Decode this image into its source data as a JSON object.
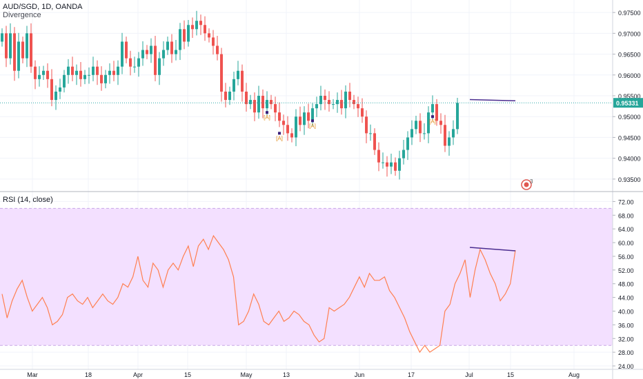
{
  "header": {
    "symbol_line": "AUD/SGD, 1D, OANDA",
    "indicator_name": "Divergence",
    "rsi_label": "RSI (14, close)"
  },
  "last_price_label": "0.95331",
  "badge_count": "3",
  "colors": {
    "up": "#26a69a",
    "down": "#ef5350",
    "rsi_line": "#ff7f50",
    "rsi_band": "#f3e0ff",
    "divergence_line": "#4a2c8f",
    "price_line": "#2aa8a8",
    "pivot_label": "#e08c1a"
  },
  "chart_data": [
    {
      "type": "candlestick",
      "y_axis_ticks": [
        "0.97500",
        "0.97000",
        "0.96500",
        "0.96000",
        "0.95500",
        "0.95000",
        "0.94500",
        "0.94000",
        "0.93500"
      ],
      "ylim": [
        0.932,
        0.978
      ],
      "x_tick_labels": [
        "Mar",
        "18",
        "Apr",
        "15",
        "May",
        "13",
        "Jun",
        "17",
        "Jul",
        "15",
        "Aug"
      ],
      "last_price": 0.95331,
      "closes": [
        0.97,
        0.964,
        0.97,
        0.961,
        0.968,
        0.964,
        0.97,
        0.962,
        0.959,
        0.96,
        0.961,
        0.959,
        0.954,
        0.956,
        0.957,
        0.96,
        0.962,
        0.96,
        0.961,
        0.959,
        0.96,
        0.96,
        0.962,
        0.96,
        0.958,
        0.96,
        0.961,
        0.96,
        0.962,
        0.968,
        0.964,
        0.962,
        0.962,
        0.964,
        0.966,
        0.965,
        0.967,
        0.96,
        0.964,
        0.966,
        0.968,
        0.965,
        0.966,
        0.971,
        0.968,
        0.972,
        0.971,
        0.973,
        0.972,
        0.97,
        0.969,
        0.967,
        0.965,
        0.956,
        0.954,
        0.956,
        0.959,
        0.961,
        0.956,
        0.953,
        0.954,
        0.951,
        0.955,
        0.952,
        0.954,
        0.953,
        0.951,
        0.949,
        0.948,
        0.946,
        0.945,
        0.95,
        0.948,
        0.951,
        0.949,
        0.952,
        0.953,
        0.955,
        0.954,
        0.953,
        0.953,
        0.954,
        0.952,
        0.956,
        0.954,
        0.953,
        0.952,
        0.95,
        0.946,
        0.946,
        0.942,
        0.939,
        0.939,
        0.938,
        0.939,
        0.937,
        0.94,
        0.942,
        0.945,
        0.947,
        0.949,
        0.946,
        0.946,
        0.951,
        0.953,
        0.949,
        0.948,
        0.943,
        0.945,
        0.947,
        0.9533
      ],
      "pivot_labels": [
        {
          "text": "[A]",
          "index": 64
        },
        {
          "text": "[A]",
          "index": 67
        },
        {
          "text": "[A]",
          "index": 75
        },
        {
          "text": "[A]",
          "index": 104
        }
      ],
      "divergence_line": [
        {
          "index": 113,
          "value": 0.9541
        },
        {
          "index": 124,
          "value": 0.9538
        }
      ]
    },
    {
      "type": "line",
      "series": [
        {
          "name": "RSI (14, close)",
          "values": [
            45.0,
            38.0,
            43.0,
            46.5,
            49.0,
            44.0,
            40.0,
            42.0,
            44.0,
            41.0,
            36.0,
            37.0,
            39.0,
            44.0,
            45.0,
            43.0,
            42.0,
            44.0,
            41.0,
            43.0,
            45.0,
            43.0,
            42.0,
            44.0,
            48.0,
            47.0,
            50.0,
            56.0,
            49.0,
            47.0,
            54.0,
            52.0,
            47.0,
            52.0,
            54.0,
            52.0,
            56.0,
            59.0,
            53.0,
            59.0,
            61.0,
            58.0,
            62.0,
            60.0,
            58.0,
            55.0,
            50.0,
            36.0,
            37.0,
            40.0,
            45.0,
            42.0,
            37.0,
            36.0,
            38.0,
            40.0,
            37.0,
            38.0,
            40.0,
            39.0,
            37.0,
            36.0,
            33.0,
            31.0,
            32.0,
            41.0,
            40.0,
            41.0,
            42.0,
            44.0,
            47.0,
            50.0,
            47.0,
            51.0,
            49.0,
            49.0,
            50.0,
            46.0,
            44.0,
            41.0,
            38.0,
            34.0,
            31.0,
            28.0,
            30.0,
            28.0,
            29.0,
            30.0,
            40.0,
            42.0,
            48.0,
            51.0,
            55.0,
            44.0,
            52.0,
            58.0,
            55.0,
            51.0,
            48.0,
            43.0,
            45.0,
            48.0,
            57.8
          ]
        }
      ],
      "y_axis_ticks": [
        "72.00",
        "68.00",
        "64.00",
        "60.00",
        "56.00",
        "52.00",
        "48.00",
        "44.00",
        "40.00",
        "36.00",
        "32.00",
        "28.00",
        "24.00"
      ],
      "ylim": [
        23.0,
        74.5
      ],
      "band": [
        30,
        70
      ],
      "divergence_line": [
        {
          "index": 113,
          "value": 58.6
        },
        {
          "index": 124,
          "value": 57.6
        }
      ]
    }
  ]
}
